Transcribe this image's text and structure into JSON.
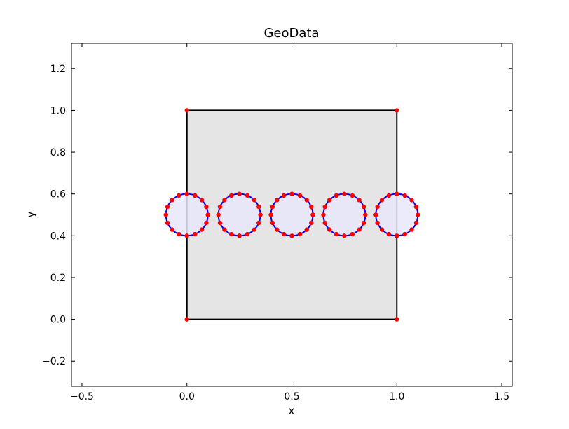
{
  "chart_data": {
    "type": "scatter",
    "title": "GeoData",
    "xlabel": "x",
    "ylabel": "y",
    "xlim": [
      -0.55,
      1.55
    ],
    "ylim": [
      -0.32,
      1.32
    ],
    "grid": false,
    "x_ticks": [
      -0.5,
      0.0,
      0.5,
      1.0,
      1.5
    ],
    "x_tick_labels": [
      "−0.5",
      "0.0",
      "0.5",
      "1.0",
      "1.5"
    ],
    "y_ticks": [
      -0.2,
      0.0,
      0.2,
      0.4,
      0.6,
      0.8,
      1.0,
      1.2
    ],
    "y_tick_labels": [
      "−0.2",
      "0.0",
      "0.2",
      "0.4",
      "0.6",
      "0.8",
      "1.0",
      "1.2"
    ],
    "domain": {
      "vertices": [
        [
          0,
          0
        ],
        [
          1,
          0
        ],
        [
          1,
          1
        ],
        [
          0,
          1
        ]
      ],
      "fill": "#e5e5e5",
      "edge_color": "#000000",
      "point_color": "#ff0000"
    },
    "holes": {
      "radius": 0.1,
      "centers": [
        [
          0.0,
          0.5
        ],
        [
          0.25,
          0.5
        ],
        [
          0.5,
          0.5
        ],
        [
          0.75,
          0.5
        ],
        [
          1.0,
          0.5
        ]
      ],
      "points_per_circle": 16,
      "fill": "#e8e8fb",
      "edge_color": "#0000ff",
      "point_color": "#ff0000"
    }
  }
}
